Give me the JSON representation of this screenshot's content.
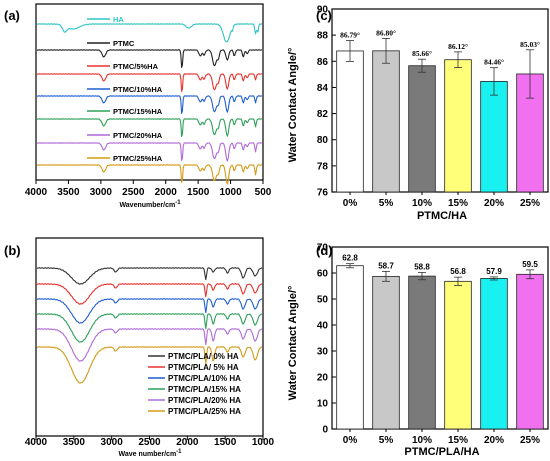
{
  "panels": {
    "a": {
      "letter": "(a)",
      "xlabel": "Wavenumber/cm",
      "xlabel_sup": "-1",
      "xticks": [
        "4000",
        "3500",
        "3000",
        "2500",
        "2000",
        "1500",
        "1000",
        "500"
      ],
      "series": [
        {
          "name": "HA",
          "color": "#2ec4c4"
        },
        {
          "name": "PTMC",
          "color": "#222222"
        },
        {
          "name": "PTMC/5%HA",
          "color": "#e8322e"
        },
        {
          "name": "PTMC/10%HA",
          "color": "#1f5fd0"
        },
        {
          "name": "PTMC/15%HA",
          "color": "#2ea05a"
        },
        {
          "name": "PTMC/20%HA",
          "color": "#b06ad8"
        },
        {
          "name": "PTMC/25%HA",
          "color": "#d49a17"
        }
      ]
    },
    "b": {
      "letter": "(b)",
      "xlabel": "Wave number/cm",
      "xlabel_sup": "-1",
      "xticks": [
        "4000",
        "3500",
        "3000",
        "2500",
        "2000",
        "1500",
        "1000"
      ],
      "series": [
        {
          "name": "PTMC/PLA/ 0% HA",
          "color": "#333333"
        },
        {
          "name": "PTMC/PLA/ 5% HA",
          "color": "#e8322e"
        },
        {
          "name": "PTMC/PLA/10% HA",
          "color": "#1f5fd0"
        },
        {
          "name": "PTMC/PLA/15% HA",
          "color": "#2ea05a"
        },
        {
          "name": "PTMC/PLA/20% HA",
          "color": "#b06ad8"
        },
        {
          "name": "PTMC/PLA/25% HA",
          "color": "#d49a17"
        }
      ]
    },
    "c": {
      "letter": "(c)"
    },
    "d": {
      "letter": "(d)"
    }
  },
  "chart_data": [
    {
      "type": "line",
      "panel": "a",
      "title": "",
      "xlabel": "Wavenumber/cm-1",
      "ylabel": "",
      "xlim": [
        4000,
        500
      ],
      "x_reversed": true,
      "series": [
        "HA",
        "PTMC",
        "PTMC/5%HA",
        "PTMC/10%HA",
        "PTMC/15%HA",
        "PTMC/20%HA",
        "PTMC/25%HA"
      ],
      "notes": "FTIR transmittance spectra, vertically offset, no y-axis values"
    },
    {
      "type": "line",
      "panel": "b",
      "title": "",
      "xlabel": "Wave number/cm-1",
      "ylabel": "",
      "xlim": [
        4000,
        1000
      ],
      "x_reversed": true,
      "series": [
        "PTMC/PLA/ 0% HA",
        "PTMC/PLA/ 5% HA",
        "PTMC/PLA/10% HA",
        "PTMC/PLA/15% HA",
        "PTMC/PLA/20% HA",
        "PTMC/PLA/25% HA"
      ],
      "legend": "bottom-right"
    },
    {
      "type": "bar",
      "panel": "c",
      "title": "",
      "xlabel": "PTMC/HA",
      "ylabel": "Water Contact Angle/°",
      "ylim": [
        76,
        90
      ],
      "yticks": [
        76,
        78,
        80,
        82,
        84,
        86,
        88,
        90
      ],
      "categories": [
        "0%",
        "5%",
        "10%",
        "15%",
        "20%",
        "25%"
      ],
      "values": [
        86.79,
        86.8,
        85.66,
        86.12,
        84.46,
        85.03
      ],
      "errors": [
        0.8,
        0.95,
        0.5,
        0.6,
        1.05,
        1.85
      ],
      "labels": [
        "86.79°",
        "86.80°",
        "85.66°",
        "86.12°",
        "84.46°",
        "85.03°"
      ],
      "colors": [
        "#ffffff",
        "#c8c8c8",
        "#7a7a7a",
        "#ffff7a",
        "#19f0f0",
        "#f070f0"
      ]
    },
    {
      "type": "bar",
      "panel": "d",
      "title": "",
      "xlabel": "PTMC/PLA/HA",
      "ylabel": "Water Contact Angle/°",
      "ylim": [
        0,
        70
      ],
      "yticks": [
        0,
        10,
        20,
        30,
        40,
        50,
        60,
        70
      ],
      "categories": [
        "0%",
        "5%",
        "10%",
        "15%",
        "20%",
        "25%"
      ],
      "values": [
        62.8,
        58.7,
        58.8,
        56.8,
        57.9,
        59.5
      ],
      "errors": [
        0.8,
        1.9,
        1.4,
        1.6,
        0.6,
        1.7
      ],
      "labels": [
        "62.8",
        "58.7",
        "58.8",
        "56.8",
        "57.9",
        "59.5"
      ],
      "colors": [
        "#ffffff",
        "#c8c8c8",
        "#7a7a7a",
        "#ffff7a",
        "#19f0f0",
        "#f070f0"
      ]
    }
  ]
}
